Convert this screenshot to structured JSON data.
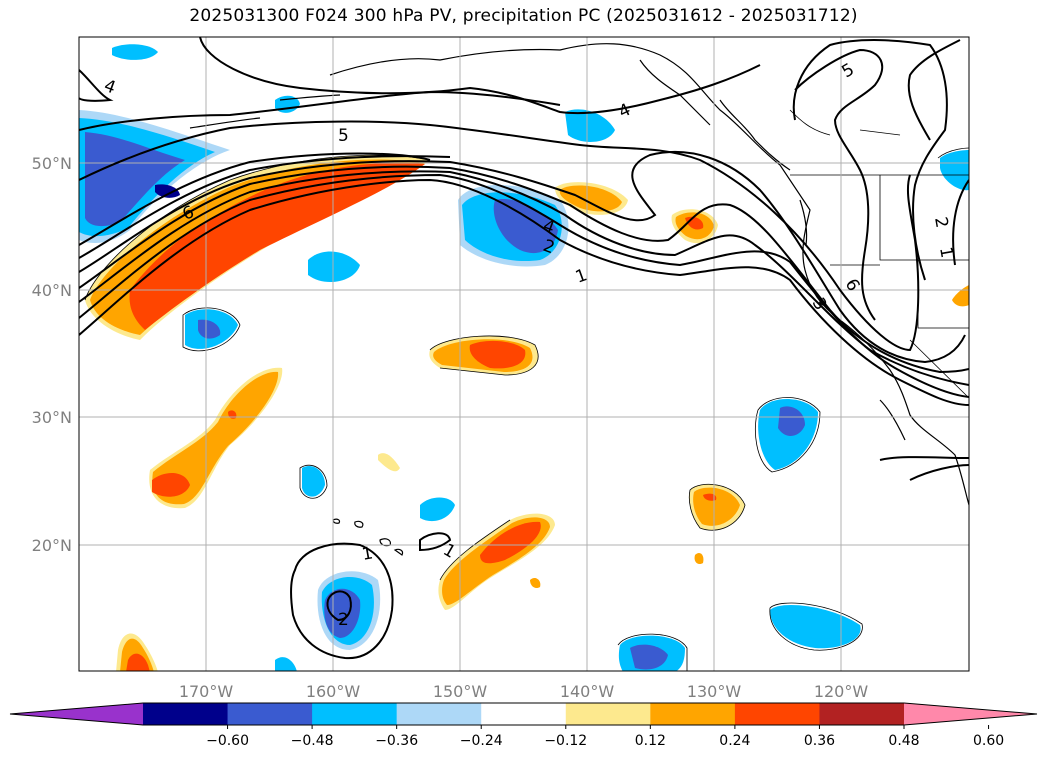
{
  "title": "2025031300 F024 300 hPa PV, precipitation PC (2025031612 - 2025031712)",
  "map": {
    "lon_labels": [
      "170°W",
      "160°W",
      "150°W",
      "140°W",
      "130°W",
      "120°W"
    ],
    "lat_labels": [
      "50°N",
      "40°N",
      "30°N",
      "20°N"
    ],
    "contour_labels": [
      "5",
      "4",
      "5",
      "6",
      "4",
      "2",
      "1",
      "6",
      "3",
      "2",
      "1",
      "1",
      "1",
      "2",
      "4"
    ]
  },
  "colorbar": {
    "ticks": [
      "−0.60",
      "−0.48",
      "−0.36",
      "−0.24",
      "−0.12",
      "0.12",
      "0.24",
      "0.36",
      "0.48",
      "0.60"
    ],
    "colors": [
      "#9932cc",
      "#00008b",
      "#3a5bd0",
      "#00bfff",
      "#add8f7",
      "#ffffff",
      "#fde98e",
      "#ffa500",
      "#ff4500",
      "#b22222",
      "#ff88aa"
    ]
  }
}
